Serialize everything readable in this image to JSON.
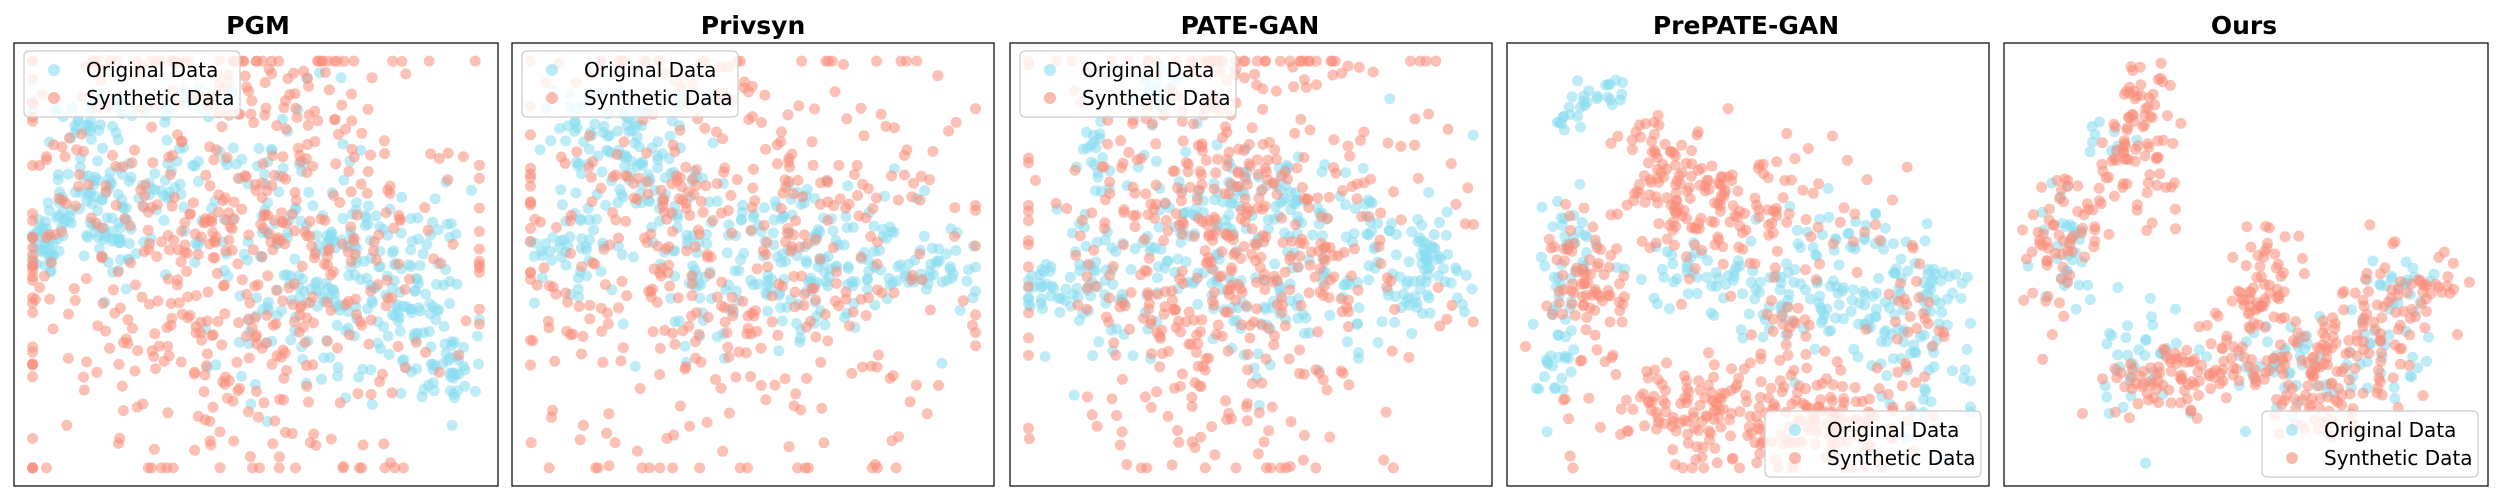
{
  "colors": {
    "original": "#87dcf0",
    "synthetic": "#fa8c78",
    "frame": "#000000",
    "legend_border": "#cccccc"
  },
  "legend_labels": {
    "original": "Original Data",
    "synthetic": "Synthetic Data"
  },
  "chart_data": [
    {
      "type": "scatter",
      "title": "PGM",
      "legend_position": "upper left",
      "xlim": [
        0,
        100
      ],
      "ylim": [
        0,
        100
      ],
      "axes_ticks": false,
      "series": [
        {
          "name": "Original Data",
          "color": "#87dcf0",
          "clusters": [
            [
              4,
              55,
              3,
              4,
              40
            ],
            [
              12,
              65,
              4,
              5,
              40
            ],
            [
              12,
              85,
              6,
              4,
              30
            ],
            [
              20,
              55,
              3,
              8,
              30
            ],
            [
              18,
              72,
              3,
              12,
              30
            ],
            [
              30,
              68,
              3,
              3,
              20
            ],
            [
              35,
              88,
              6,
              3,
              20
            ],
            [
              55,
              60,
              10,
              15,
              80
            ],
            [
              60,
              40,
              10,
              12,
              60
            ],
            [
              70,
              45,
              6,
              10,
              40
            ],
            [
              80,
              48,
              8,
              10,
              60
            ],
            [
              88,
              35,
              6,
              10,
              50
            ],
            [
              93,
              25,
              3,
              5,
              30
            ],
            [
              45,
              75,
              8,
              3,
              20
            ]
          ]
        },
        {
          "name": "Synthetic Data",
          "color": "#fa8c78",
          "clusters": [
            [
              45,
              55,
              26,
              30,
              600
            ]
          ]
        }
      ]
    },
    {
      "type": "scatter",
      "title": "Privsyn",
      "legend_position": "upper left",
      "xlim": [
        0,
        100
      ],
      "ylim": [
        0,
        100
      ],
      "axes_ticks": false,
      "series": [
        {
          "name": "Original Data",
          "color": "#87dcf0",
          "clusters": [
            [
              10,
              55,
              4,
              6,
              40
            ],
            [
              22,
              75,
              6,
              10,
              70
            ],
            [
              35,
              65,
              5,
              10,
              40
            ],
            [
              45,
              45,
              12,
              8,
              60
            ],
            [
              60,
              48,
              10,
              8,
              60
            ],
            [
              75,
              55,
              8,
              10,
              50
            ],
            [
              90,
              48,
              6,
              4,
              40
            ],
            [
              15,
              85,
              6,
              5,
              30
            ],
            [
              55,
              62,
              5,
              3,
              20
            ]
          ]
        },
        {
          "name": "Synthetic Data",
          "color": "#fa8c78",
          "clusters": [
            [
              45,
              55,
              25,
              28,
              450
            ]
          ]
        }
      ]
    },
    {
      "type": "scatter",
      "title": "PATE-GAN",
      "legend_position": "upper left",
      "xlim": [
        0,
        100
      ],
      "ylim": [
        0,
        100
      ],
      "axes_ticks": false,
      "series": [
        {
          "name": "Original Data",
          "color": "#87dcf0",
          "clusters": [
            [
              5,
              45,
              3,
              3,
              30
            ],
            [
              15,
              45,
              6,
              10,
              50
            ],
            [
              15,
              75,
              3,
              6,
              20
            ],
            [
              30,
              55,
              4,
              12,
              40
            ],
            [
              45,
              55,
              6,
              15,
              60
            ],
            [
              55,
              65,
              10,
              6,
              60
            ],
            [
              70,
              55,
              8,
              12,
              60
            ],
            [
              85,
              45,
              6,
              8,
              40
            ],
            [
              90,
              50,
              5,
              5,
              30
            ],
            [
              60,
              40,
              10,
              5,
              30
            ],
            [
              30,
              92,
              3,
              3,
              15
            ]
          ]
        },
        {
          "name": "Synthetic Data",
          "color": "#fa8c78",
          "clusters": [
            [
              45,
              55,
              22,
              26,
              550
            ]
          ]
        }
      ]
    },
    {
      "type": "scatter",
      "title": "PrePATE-GAN",
      "legend_position": "lower right",
      "xlim": [
        0,
        100
      ],
      "ylim": [
        0,
        100
      ],
      "axes_ticks": false,
      "series": [
        {
          "name": "Original Data",
          "color": "#87dcf0",
          "clusters": [
            [
              8,
              28,
              2,
              8,
              30
            ],
            [
              10,
              55,
              3,
              8,
              30
            ],
            [
              12,
              85,
              2,
              3,
              15
            ],
            [
              20,
              92,
              3,
              2,
              15
            ],
            [
              40,
              48,
              12,
              3,
              50
            ],
            [
              60,
              40,
              12,
              4,
              50
            ],
            [
              80,
              40,
              8,
              8,
              50
            ],
            [
              88,
              25,
              6,
              8,
              40
            ],
            [
              70,
              55,
              8,
              5,
              40
            ],
            [
              92,
              45,
              3,
              4,
              20
            ]
          ]
        },
        {
          "name": "Synthetic Data",
          "color": "#fa8c78",
          "clusters": [
            [
              40,
              15,
              12,
              7,
              150
            ],
            [
              70,
              12,
              8,
              6,
              100
            ],
            [
              15,
              45,
              4,
              10,
              80
            ],
            [
              40,
              65,
              8,
              6,
              80
            ],
            [
              30,
              75,
              5,
              5,
              40
            ],
            [
              55,
              60,
              15,
              10,
              80
            ],
            [
              85,
              35,
              4,
              8,
              30
            ],
            [
              60,
              35,
              4,
              4,
              20
            ]
          ]
        }
      ]
    },
    {
      "type": "scatter",
      "title": "Ours",
      "legend_position": "lower right",
      "xlim": [
        0,
        100
      ],
      "ylim": [
        0,
        100
      ],
      "axes_ticks": false,
      "series": [
        {
          "name": "Original Data",
          "color": "#87dcf0",
          "clusters": [
            [
              25,
              25,
              5,
              8,
              40
            ],
            [
              60,
              25,
              8,
              6,
              40
            ],
            [
              80,
              30,
              6,
              6,
              30
            ],
            [
              10,
              55,
              3,
              8,
              30
            ],
            [
              85,
              45,
              4,
              4,
              20
            ],
            [
              20,
              80,
              3,
              3,
              10
            ]
          ]
        },
        {
          "name": "Synthetic Data",
          "color": "#fa8c78",
          "clusters": [
            [
              35,
              22,
              8,
              4,
              80
            ],
            [
              60,
              28,
              10,
              5,
              80
            ],
            [
              78,
              35,
              6,
              8,
              60
            ],
            [
              90,
              45,
              4,
              4,
              30
            ],
            [
              8,
              55,
              3,
              10,
              40
            ],
            [
              15,
              60,
              4,
              6,
              20
            ],
            [
              25,
              75,
              5,
              6,
              60
            ],
            [
              28,
              90,
              3,
              4,
              30
            ],
            [
              55,
              50,
              3,
              6,
              30
            ],
            [
              65,
              15,
              5,
              4,
              40
            ],
            [
              50,
              40,
              4,
              4,
              30
            ]
          ]
        }
      ]
    }
  ]
}
